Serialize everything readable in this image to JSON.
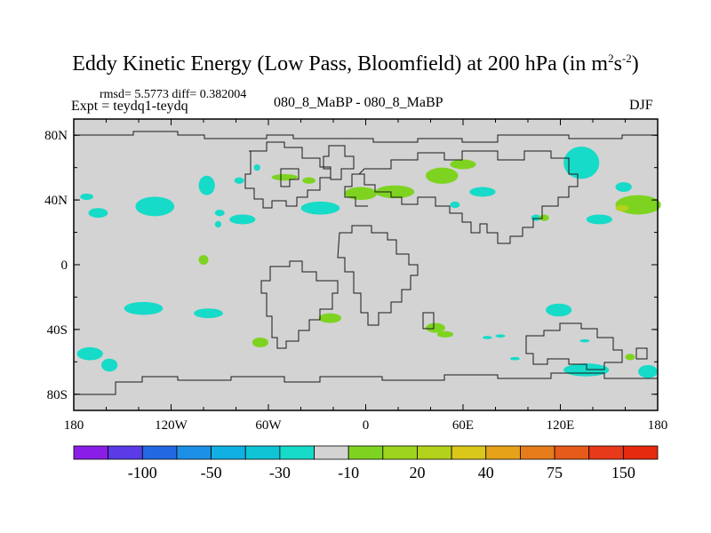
{
  "title": {
    "main": "Eddy Kinetic Energy (Low Pass, Bloomfield) at 200 hPa (in m",
    "sup1": "2",
    "mid": "s",
    "sup2": "-2",
    "end": ")"
  },
  "stats_line": "rmsd= 5.5773 diff= 0.382004",
  "expt_line": "Expt = teydq1-teydq",
  "subtitle": "080_8_MaBP - 080_8_MaBP",
  "season": "DJF",
  "colors": {
    "land_gray": "#d3d3d3",
    "cyan": "#16dbc8",
    "green": "#7ed321",
    "olive": "#b3d21b"
  },
  "chart_data": {
    "type": "heatmap",
    "projection": "cylindrical-equidistant",
    "x_range": [
      -180,
      180
    ],
    "y_range": [
      -90,
      90
    ],
    "x_ticks": [
      {
        "value": -180,
        "label": "180"
      },
      {
        "value": -120,
        "label": "120W"
      },
      {
        "value": -60,
        "label": "60W"
      },
      {
        "value": 0,
        "label": "0"
      },
      {
        "value": 60,
        "label": "60E"
      },
      {
        "value": 120,
        "label": "120E"
      },
      {
        "value": 180,
        "label": "180"
      }
    ],
    "y_ticks": [
      {
        "value": 80,
        "label": "80N"
      },
      {
        "value": 40,
        "label": "40N"
      },
      {
        "value": 0,
        "label": "0"
      },
      {
        "value": -40,
        "label": "40S"
      },
      {
        "value": -80,
        "label": "80S"
      }
    ],
    "colorbar": {
      "colors": [
        "#8a1ee6",
        "#5a3be6",
        "#2368e3",
        "#1c90e6",
        "#10b0e2",
        "#10c4d6",
        "#16dbc8",
        "#d3d3d3",
        "#7ed321",
        "#9dd51d",
        "#b3d21b",
        "#d9c71a",
        "#e6a31a",
        "#e67c1a",
        "#e65a1a",
        "#e63a1a",
        "#e62a10"
      ],
      "labels": [
        {
          "index": 1,
          "label": "-100"
        },
        {
          "index": 3,
          "label": "-50"
        },
        {
          "index": 5,
          "label": "-30"
        },
        {
          "index": 7,
          "label": "-10"
        },
        {
          "index": 9,
          "label": "20"
        },
        {
          "index": 11,
          "label": "40"
        },
        {
          "index": 13,
          "label": "75"
        },
        {
          "index": 15,
          "label": "150"
        }
      ]
    },
    "anomalies": [
      {
        "lon": -172,
        "lat": 42,
        "rlon": 4,
        "rlat": 2,
        "color": "cyan"
      },
      {
        "lon": -165,
        "lat": 32,
        "rlon": 6,
        "rlat": 3,
        "color": "cyan"
      },
      {
        "lon": -130,
        "lat": 36,
        "rlon": 12,
        "rlat": 6,
        "color": "cyan"
      },
      {
        "lon": -98,
        "lat": 49,
        "rlon": 5,
        "rlat": 6,
        "color": "cyan"
      },
      {
        "lon": -90,
        "lat": 32,
        "rlon": 3,
        "rlat": 2,
        "color": "cyan"
      },
      {
        "lon": -76,
        "lat": 28,
        "rlon": 8,
        "rlat": 3,
        "color": "cyan"
      },
      {
        "lon": -78,
        "lat": 52,
        "rlon": 3,
        "rlat": 2,
        "color": "cyan"
      },
      {
        "lon": -91,
        "lat": 25,
        "rlon": 2,
        "rlat": 2,
        "color": "cyan"
      },
      {
        "lon": -67,
        "lat": 60,
        "rlon": 2,
        "rlat": 2,
        "color": "cyan"
      },
      {
        "lon": -50,
        "lat": 54,
        "rlon": 8,
        "rlat": 2,
        "color": "green"
      },
      {
        "lon": -35,
        "lat": 52,
        "rlon": 4,
        "rlat": 2,
        "color": "green"
      },
      {
        "lon": -28,
        "lat": 35,
        "rlon": 12,
        "rlat": 4,
        "color": "cyan"
      },
      {
        "lon": -3,
        "lat": 44,
        "rlon": 10,
        "rlat": 4,
        "color": "green"
      },
      {
        "lon": 18,
        "lat": 45,
        "rlon": 12,
        "rlat": 4,
        "color": "green"
      },
      {
        "lon": 47,
        "lat": 55,
        "rlon": 10,
        "rlat": 5,
        "color": "green"
      },
      {
        "lon": 60,
        "lat": 62,
        "rlon": 8,
        "rlat": 3,
        "color": "green"
      },
      {
        "lon": 72,
        "lat": 45,
        "rlon": 8,
        "rlat": 3,
        "color": "cyan"
      },
      {
        "lon": 55,
        "lat": 37,
        "rlon": 3,
        "rlat": 2,
        "color": "cyan"
      },
      {
        "lon": 105,
        "lat": 29,
        "rlon": 3,
        "rlat": 2,
        "color": "cyan"
      },
      {
        "lon": 110,
        "lat": 29,
        "rlon": 3,
        "rlat": 2,
        "color": "green"
      },
      {
        "lon": 133,
        "lat": 63,
        "rlon": 11,
        "rlat": 10,
        "color": "cyan"
      },
      {
        "lon": 159,
        "lat": 48,
        "rlon": 5,
        "rlat": 3,
        "color": "cyan"
      },
      {
        "lon": 144,
        "lat": 28,
        "rlon": 8,
        "rlat": 3,
        "color": "cyan"
      },
      {
        "lon": 168,
        "lat": 37,
        "rlon": 14,
        "rlat": 6,
        "color": "green"
      },
      {
        "lon": 158,
        "lat": 35,
        "rlon": 4,
        "rlat": 2,
        "color": "olive"
      },
      {
        "lon": -100,
        "lat": 3,
        "rlon": 3,
        "rlat": 3,
        "color": "green"
      },
      {
        "lon": -137,
        "lat": -27,
        "rlon": 12,
        "rlat": 4,
        "color": "cyan"
      },
      {
        "lon": -97,
        "lat": -30,
        "rlon": 9,
        "rlat": 3,
        "color": "cyan"
      },
      {
        "lon": -93,
        "lat": -30,
        "rlon": 3,
        "rlat": 2,
        "color": "cyan"
      },
      {
        "lon": -170,
        "lat": -55,
        "rlon": 8,
        "rlat": 4,
        "color": "cyan"
      },
      {
        "lon": -158,
        "lat": -62,
        "rlon": 5,
        "rlat": 4,
        "color": "cyan"
      },
      {
        "lon": -65,
        "lat": -48,
        "rlon": 5,
        "rlat": 3,
        "color": "green"
      },
      {
        "lon": -22,
        "lat": -33,
        "rlon": 7,
        "rlat": 3,
        "color": "green"
      },
      {
        "lon": 43,
        "lat": -39,
        "rlon": 6,
        "rlat": 3,
        "color": "green"
      },
      {
        "lon": 49,
        "lat": -43,
        "rlon": 5,
        "rlat": 2,
        "color": "green"
      },
      {
        "lon": 75,
        "lat": -45,
        "rlon": 3,
        "rlat": 1,
        "color": "cyan"
      },
      {
        "lon": 83,
        "lat": -44,
        "rlon": 3,
        "rlat": 1,
        "color": "cyan"
      },
      {
        "lon": 119,
        "lat": -28,
        "rlon": 8,
        "rlat": 4,
        "color": "cyan"
      },
      {
        "lon": 135,
        "lat": -47,
        "rlon": 3,
        "rlat": 1,
        "color": "cyan"
      },
      {
        "lon": 92,
        "lat": -58,
        "rlon": 3,
        "rlat": 1,
        "color": "cyan"
      },
      {
        "lon": 136,
        "lat": -65,
        "rlon": 14,
        "rlat": 4,
        "color": "cyan"
      },
      {
        "lon": 174,
        "lat": -66,
        "rlon": 6,
        "rlat": 4,
        "color": "cyan"
      },
      {
        "lon": 163,
        "lat": -57,
        "rlon": 3,
        "rlat": 2,
        "color": "green"
      }
    ]
  }
}
